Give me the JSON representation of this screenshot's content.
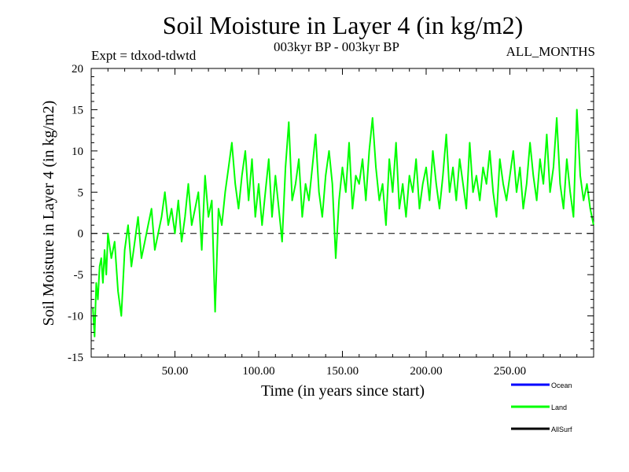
{
  "header": {
    "title": "Soil Moisture in Layer 4 (in kg/m2)",
    "subtitle": "003kyr BP - 003kyr BP",
    "experiment": "Expt = tdxod-tdwtd",
    "period": "ALL_MONTHS"
  },
  "chart_data": {
    "type": "line",
    "title": "Soil Moisture in Layer 4 (in kg/m2)",
    "xlabel": "Time (in years since start)",
    "ylabel": "Soil Moisture in Layer 4 (in kg/m2)",
    "xlim": [
      0,
      300
    ],
    "ylim": [
      -15,
      20
    ],
    "x_ticks": [
      50,
      100,
      150,
      200,
      250
    ],
    "x_tick_labels": [
      "50.00",
      "100.00",
      "150.00",
      "200.00",
      "250.00"
    ],
    "y_ticks": [
      -15,
      -10,
      -5,
      0,
      5,
      10,
      15,
      20
    ],
    "y_tick_labels": [
      "-15",
      "-10",
      "-5",
      "0",
      "5",
      "10",
      "15",
      "20"
    ],
    "reference_line": 0,
    "grid": false,
    "legend_position": "bottom-right",
    "series": [
      {
        "name": "Ocean",
        "color": "#0000ff",
        "x": [],
        "y": []
      },
      {
        "name": "Land",
        "color": "#00ff00",
        "x": [
          1,
          2,
          3,
          4,
          5,
          6,
          7,
          8,
          9,
          10,
          12,
          14,
          16,
          18,
          20,
          22,
          24,
          26,
          28,
          30,
          32,
          34,
          36,
          38,
          40,
          42,
          44,
          46,
          48,
          50,
          52,
          54,
          56,
          58,
          60,
          62,
          64,
          66,
          68,
          70,
          72,
          74,
          76,
          78,
          80,
          82,
          84,
          86,
          88,
          90,
          92,
          94,
          96,
          98,
          100,
          102,
          104,
          106,
          108,
          110,
          112,
          114,
          116,
          118,
          120,
          122,
          124,
          126,
          128,
          130,
          132,
          134,
          136,
          138,
          140,
          142,
          144,
          146,
          148,
          150,
          152,
          154,
          156,
          158,
          160,
          162,
          164,
          166,
          168,
          170,
          172,
          174,
          176,
          178,
          180,
          182,
          184,
          186,
          188,
          190,
          192,
          194,
          196,
          198,
          200,
          202,
          204,
          206,
          208,
          210,
          212,
          214,
          216,
          218,
          220,
          222,
          224,
          226,
          228,
          230,
          232,
          234,
          236,
          238,
          240,
          242,
          244,
          246,
          248,
          250,
          252,
          254,
          256,
          258,
          260,
          262,
          264,
          266,
          268,
          270,
          272,
          274,
          276,
          278,
          280,
          282,
          284,
          286,
          288,
          290,
          292,
          294,
          296,
          298,
          300
        ],
        "y": [
          -9,
          -12.5,
          -6,
          -8,
          -4,
          -3,
          -6,
          -2,
          -5,
          0,
          -3,
          -1,
          -7,
          -10,
          -2,
          1,
          -4,
          -1,
          2,
          -3,
          -1,
          1,
          3,
          -2,
          0,
          2,
          5,
          1,
          3,
          0,
          4,
          -1,
          2,
          6,
          1,
          3,
          5,
          -2,
          7,
          2,
          4,
          -9.5,
          3,
          1,
          5,
          8,
          11,
          6,
          3,
          7,
          10,
          4,
          9,
          2,
          6,
          1,
          5,
          9,
          2,
          7,
          3,
          -1,
          8,
          13.5,
          4,
          6,
          9,
          2,
          6,
          4,
          8,
          12,
          5,
          2,
          7,
          10,
          6,
          -3,
          4,
          8,
          5,
          11,
          3,
          7,
          6,
          9,
          4,
          10,
          14,
          8,
          4,
          6,
          1,
          9,
          5,
          11,
          3,
          6,
          2,
          7,
          5,
          9,
          3,
          6,
          8,
          4,
          10,
          6,
          3,
          7,
          12,
          5,
          8,
          4,
          9,
          6,
          3,
          11,
          5,
          7,
          4,
          8,
          6,
          10,
          5,
          2,
          9,
          6,
          4,
          7,
          10,
          5,
          8,
          3,
          6,
          11,
          7,
          4,
          9,
          6,
          12,
          5,
          8,
          14,
          6,
          3,
          9,
          5,
          2,
          15,
          7,
          4,
          6,
          3,
          1
        ]
      },
      {
        "name": "AllSurf",
        "color": "#000000",
        "x": [],
        "y": []
      }
    ]
  }
}
